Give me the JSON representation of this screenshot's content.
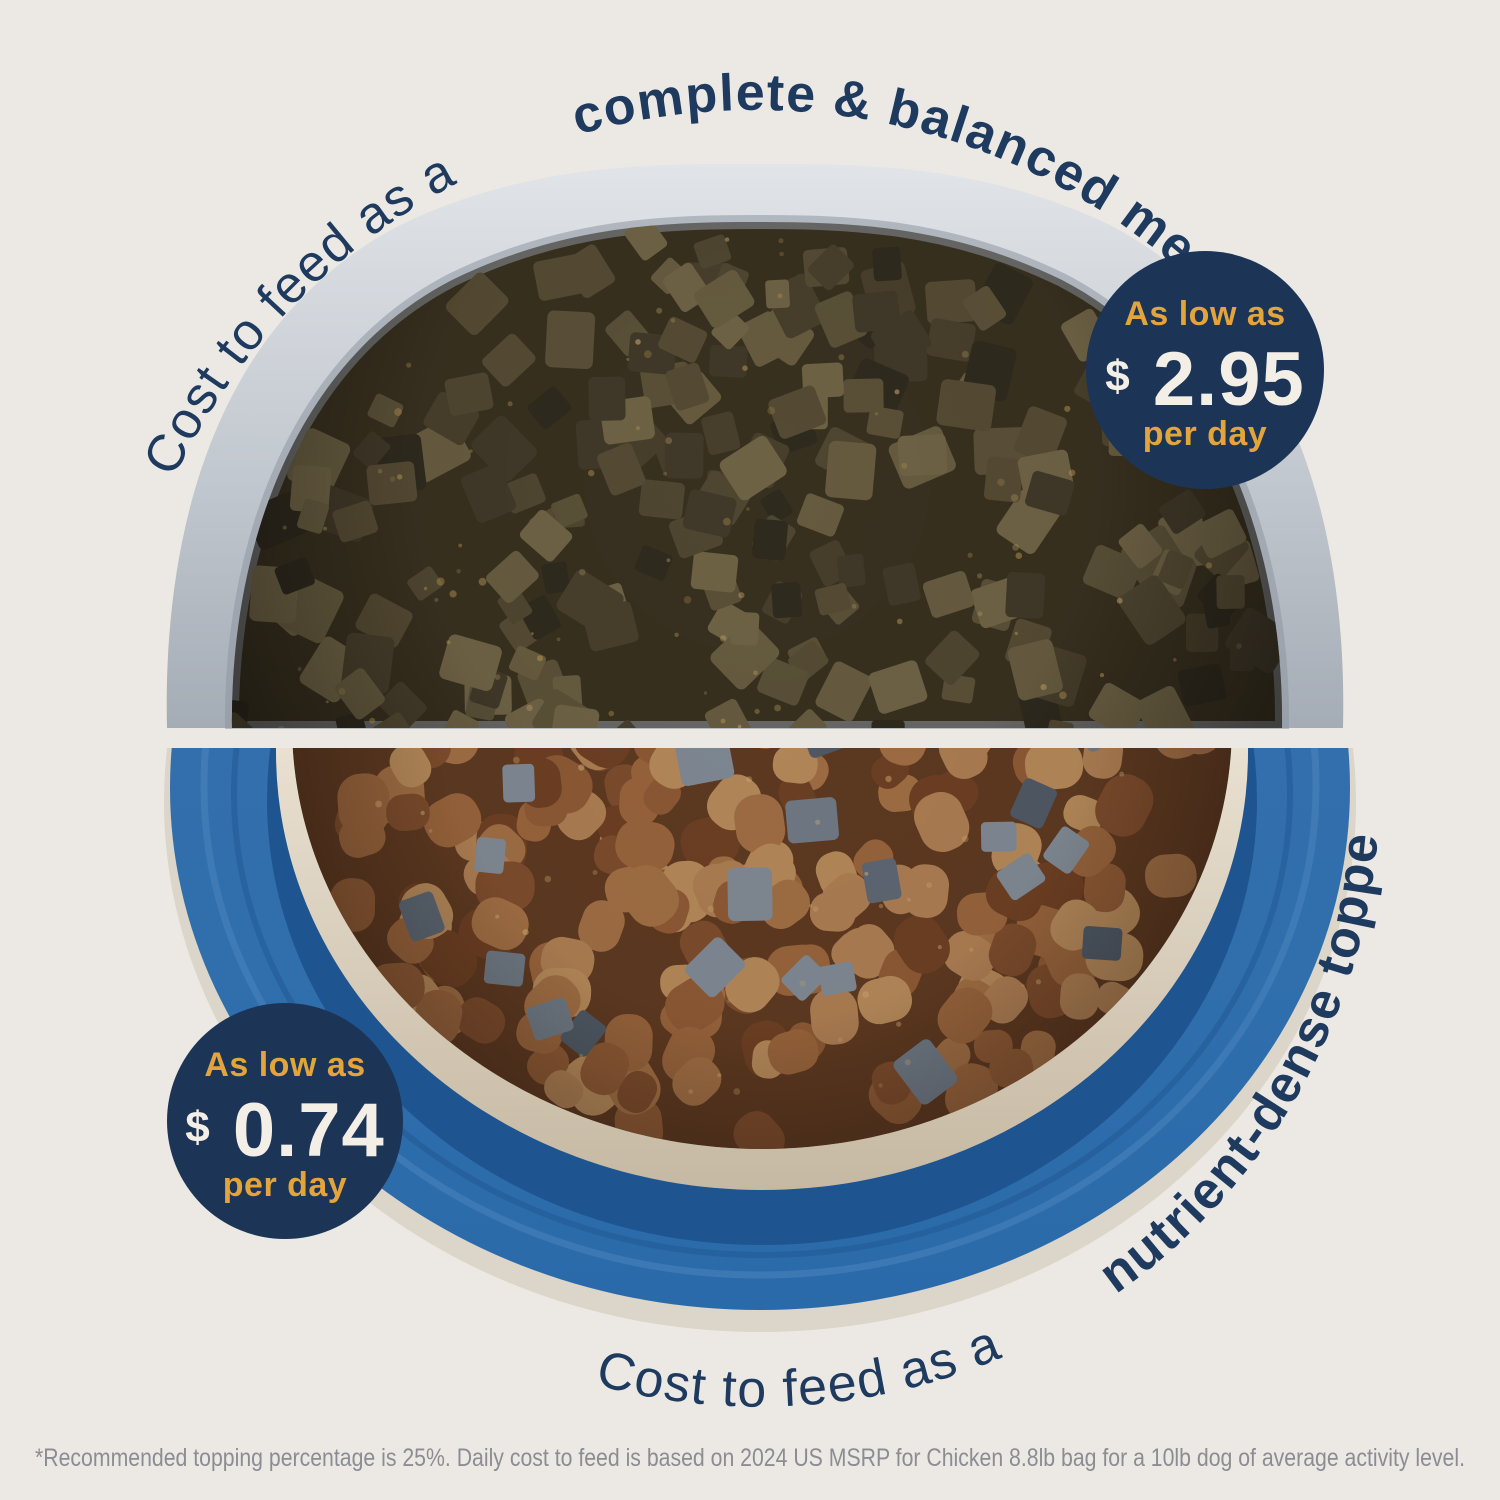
{
  "top_arc": {
    "prefix": "Cost to feed as a ",
    "emphasis": "complete & balanced meal."
  },
  "bottom_arc": {
    "prefix": "Cost to feed as a ",
    "emphasis": "nutrient-dense topper.",
    "footnote_marker": "*"
  },
  "top_badge": {
    "line1": "As low as",
    "currency": "$",
    "price": "2.95",
    "line2": "per day"
  },
  "bottom_badge": {
    "line1": "As low as",
    "currency": "$",
    "price": "0.74",
    "line2": "per day"
  },
  "footnote": "*Recommended topping percentage is 25%. Daily cost to feed is based on 2024 US MSRP for Chicken 8.8lb bag for a 10lb dog of average activity level.",
  "colors": {
    "background": "#ECE9E4",
    "headline_navy": "#1E3A5E",
    "badge_navy": "#1C3557",
    "badge_gold": "#E3A43C",
    "badge_cream": "#F4EFE6",
    "bowl_gray": "#B9C0C7",
    "bowl_blue": "#2E6DAC",
    "footnote_gray": "#8C8C93"
  }
}
